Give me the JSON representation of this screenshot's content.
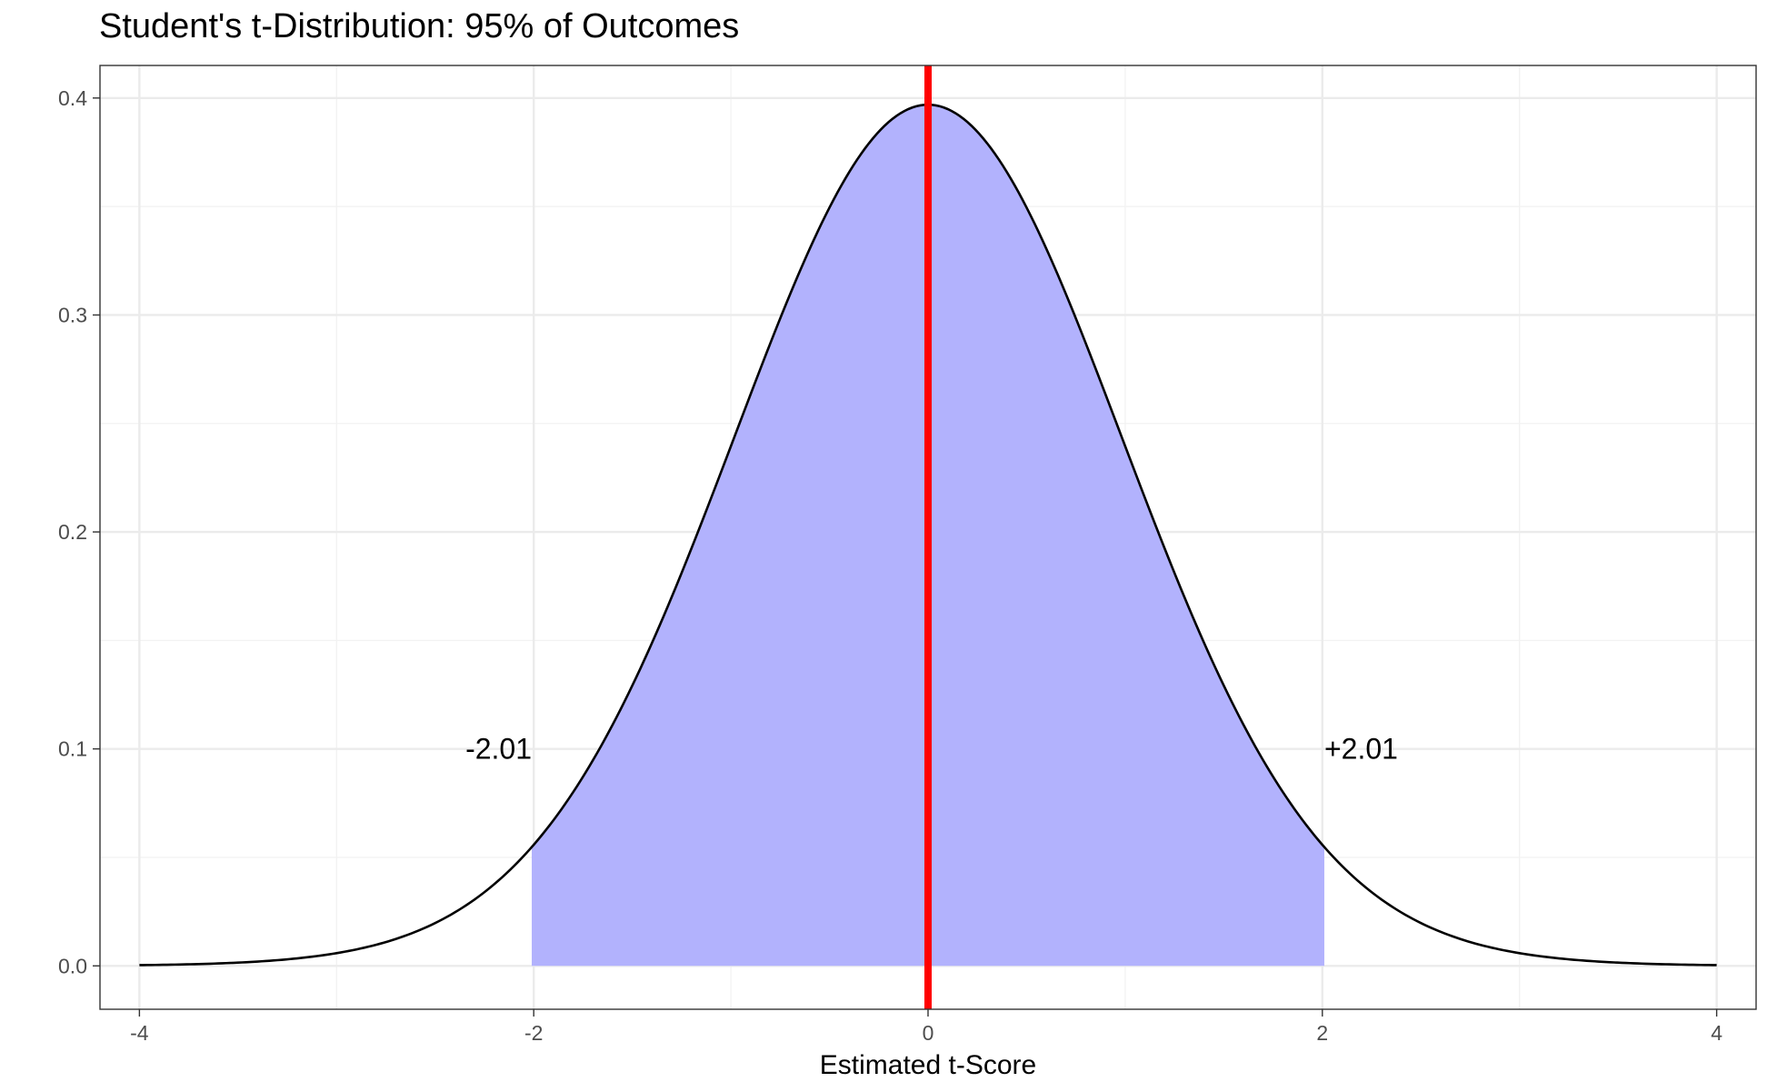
{
  "chart_data": {
    "type": "area",
    "title": "Student's t-Distribution: 95% of Outcomes",
    "xlabel": "Estimated t-Score",
    "ylabel": "",
    "xlim": [
      -4.2,
      4.2
    ],
    "ylim": [
      -0.02,
      0.415
    ],
    "x_ticks": [
      -4,
      -2,
      0,
      2,
      4
    ],
    "x_tick_labels": [
      "-4",
      "-2",
      "0",
      "2",
      "4"
    ],
    "y_ticks": [
      0.0,
      0.1,
      0.2,
      0.3,
      0.4
    ],
    "y_tick_labels": [
      "0.0",
      "0.1",
      "0.2",
      "0.3",
      "0.4"
    ],
    "grid": true,
    "distribution": {
      "name": "t",
      "degrees_of_freedom": 49,
      "x_range": [
        -4,
        4
      ],
      "peak_density": 0.397,
      "curve_color": "#000000"
    },
    "shaded_region": {
      "from": -2.01,
      "to": 2.01,
      "coverage_percent": 95,
      "fill_color": "#b2b2fd"
    },
    "vertical_line": {
      "x": 0,
      "color": "#ff0000"
    },
    "annotations": [
      {
        "text": "-2.01",
        "x": -2.01,
        "y": 0.1,
        "anchor": "end"
      },
      {
        "text": "+2.01",
        "x": 2.01,
        "y": 0.1,
        "anchor": "start"
      }
    ]
  }
}
